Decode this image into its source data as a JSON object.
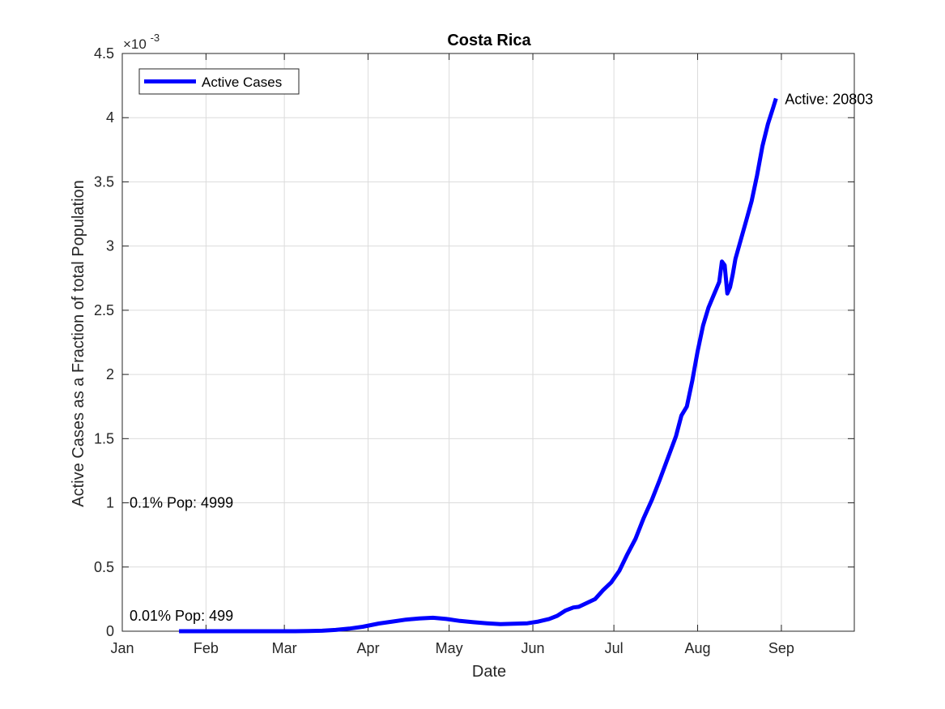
{
  "chart_data": {
    "type": "line",
    "title": "Costa Rica",
    "xlabel": "Date",
    "ylabel": "Active Cases as a Fraction of total Population",
    "y_exponent_label": "×10",
    "y_exponent_power": "-3",
    "x_ticks": [
      {
        "date": "2020-01-01",
        "label": "Jan"
      },
      {
        "date": "2020-02-01",
        "label": "Feb"
      },
      {
        "date": "2020-03-01",
        "label": "Mar"
      },
      {
        "date": "2020-04-01",
        "label": "Apr"
      },
      {
        "date": "2020-05-01",
        "label": "May"
      },
      {
        "date": "2020-06-01",
        "label": "Jun"
      },
      {
        "date": "2020-07-01",
        "label": "Jul"
      },
      {
        "date": "2020-08-01",
        "label": "Aug"
      },
      {
        "date": "2020-09-01",
        "label": "Sep"
      }
    ],
    "xlim": [
      "2020-01-01",
      "2020-09-28"
    ],
    "y_ticks": [
      {
        "value": 0,
        "label": "0"
      },
      {
        "value": 0.5,
        "label": "0.5"
      },
      {
        "value": 1,
        "label": "1"
      },
      {
        "value": 1.5,
        "label": "1.5"
      },
      {
        "value": 2,
        "label": "2"
      },
      {
        "value": 2.5,
        "label": "2.5"
      },
      {
        "value": 3,
        "label": "3"
      },
      {
        "value": 3.5,
        "label": "3.5"
      },
      {
        "value": 4,
        "label": "4"
      },
      {
        "value": 4.5,
        "label": "4.5"
      }
    ],
    "ylim": [
      0,
      4.5
    ],
    "grid": true,
    "legend_position": "top-left",
    "series": [
      {
        "name": "Active Cases",
        "color": "#0000ff",
        "points": [
          [
            "2020-01-22",
            0
          ],
          [
            "2020-02-15",
            0
          ],
          [
            "2020-03-05",
            0
          ],
          [
            "2020-03-10",
            0.001
          ],
          [
            "2020-03-15",
            0.004
          ],
          [
            "2020-03-20",
            0.01
          ],
          [
            "2020-03-25",
            0.02
          ],
          [
            "2020-03-30",
            0.035
          ],
          [
            "2020-04-05",
            0.06
          ],
          [
            "2020-04-10",
            0.075
          ],
          [
            "2020-04-15",
            0.09
          ],
          [
            "2020-04-20",
            0.1
          ],
          [
            "2020-04-25",
            0.105
          ],
          [
            "2020-04-30",
            0.095
          ],
          [
            "2020-05-05",
            0.08
          ],
          [
            "2020-05-10",
            0.07
          ],
          [
            "2020-05-15",
            0.062
          ],
          [
            "2020-05-20",
            0.055
          ],
          [
            "2020-05-25",
            0.058
          ],
          [
            "2020-05-30",
            0.062
          ],
          [
            "2020-06-03",
            0.075
          ],
          [
            "2020-06-07",
            0.095
          ],
          [
            "2020-06-10",
            0.12
          ],
          [
            "2020-06-13",
            0.16
          ],
          [
            "2020-06-16",
            0.185
          ],
          [
            "2020-06-18",
            0.19
          ],
          [
            "2020-06-21",
            0.22
          ],
          [
            "2020-06-24",
            0.25
          ],
          [
            "2020-06-27",
            0.32
          ],
          [
            "2020-06-30",
            0.38
          ],
          [
            "2020-07-03",
            0.47
          ],
          [
            "2020-07-06",
            0.6
          ],
          [
            "2020-07-09",
            0.72
          ],
          [
            "2020-07-12",
            0.88
          ],
          [
            "2020-07-15",
            1.02
          ],
          [
            "2020-07-18",
            1.18
          ],
          [
            "2020-07-21",
            1.35
          ],
          [
            "2020-07-24",
            1.52
          ],
          [
            "2020-07-26",
            1.68
          ],
          [
            "2020-07-28",
            1.75
          ],
          [
            "2020-07-30",
            1.95
          ],
          [
            "2020-08-01",
            2.18
          ],
          [
            "2020-08-03",
            2.38
          ],
          [
            "2020-08-05",
            2.52
          ],
          [
            "2020-08-07",
            2.62
          ],
          [
            "2020-08-09",
            2.72
          ],
          [
            "2020-08-10",
            2.88
          ],
          [
            "2020-08-11",
            2.85
          ],
          [
            "2020-08-12",
            2.63
          ],
          [
            "2020-08-13",
            2.68
          ],
          [
            "2020-08-14",
            2.78
          ],
          [
            "2020-08-15",
            2.9
          ],
          [
            "2020-08-17",
            3.05
          ],
          [
            "2020-08-19",
            3.2
          ],
          [
            "2020-08-21",
            3.35
          ],
          [
            "2020-08-23",
            3.55
          ],
          [
            "2020-08-25",
            3.78
          ],
          [
            "2020-08-27",
            3.95
          ],
          [
            "2020-08-29",
            4.08
          ],
          [
            "2020-08-30",
            4.15
          ]
        ]
      }
    ],
    "annotations": {
      "end_label": "Active: 20803",
      "end_point": [
        "2020-08-30",
        4.15
      ],
      "ref1_label": "0.1% Pop: 4999",
      "ref1_point": [
        "2020-01-01",
        1.0
      ],
      "ref2_label": "0.01% Pop: 499",
      "ref2_point": [
        "2020-01-01",
        0.1
      ]
    }
  }
}
